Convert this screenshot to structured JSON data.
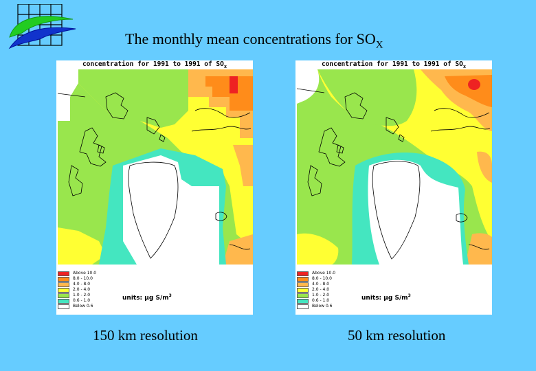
{
  "slide": {
    "title_main": "The monthly mean concentrations for SO",
    "title_sub": "X"
  },
  "colors": {
    "background": "#66ccff",
    "above_10": "#ee2222",
    "c8_10": "#ff8c1a",
    "c4_8": "#ffb84d",
    "c2_4": "#ffff33",
    "c1_2": "#99e64d",
    "c0_6_1": "#44e6c0",
    "below_0_6": "#ffffff"
  },
  "maps": [
    {
      "header_main": "concentration for 1991 to 1991 of SO",
      "header_sub": "x",
      "caption": "150 km resolution",
      "legend": [
        {
          "label": "Above   10.0",
          "color": "#ee2222"
        },
        {
          "label": "8.0  -  10.0",
          "color": "#ff8c1a"
        },
        {
          "label": "4.0  -   8.0",
          "color": "#ffb84d"
        },
        {
          "label": "2.0  -   4.0",
          "color": "#ffff33"
        },
        {
          "label": "1.0  -   2.0",
          "color": "#99e64d"
        },
        {
          "label": "0.6  -   1.0",
          "color": "#44e6c0"
        },
        {
          "label": "Below    0.6",
          "color": "#ffffff"
        }
      ],
      "units_prefix": "units: ",
      "units_text": "µg S/m",
      "units_sup": "3"
    },
    {
      "header_main": "concentration for 1991 to 1991 of SO",
      "header_sub": "x",
      "caption": "50 km resolution",
      "legend": [
        {
          "label": "Above   10.0",
          "color": "#ee2222"
        },
        {
          "label": "8.0  -  10.0",
          "color": "#ff8c1a"
        },
        {
          "label": "4.0  -   8.0",
          "color": "#ffb84d"
        },
        {
          "label": "2.0  -   4.0",
          "color": "#ffff33"
        },
        {
          "label": "1.0  -   2.0",
          "color": "#99e64d"
        },
        {
          "label": "0.6  -   1.0",
          "color": "#44e6c0"
        },
        {
          "label": "Below    0.6",
          "color": "#ffffff"
        }
      ],
      "units_prefix": "units: ",
      "units_text": "µg S/m",
      "units_sup": "3"
    }
  ]
}
